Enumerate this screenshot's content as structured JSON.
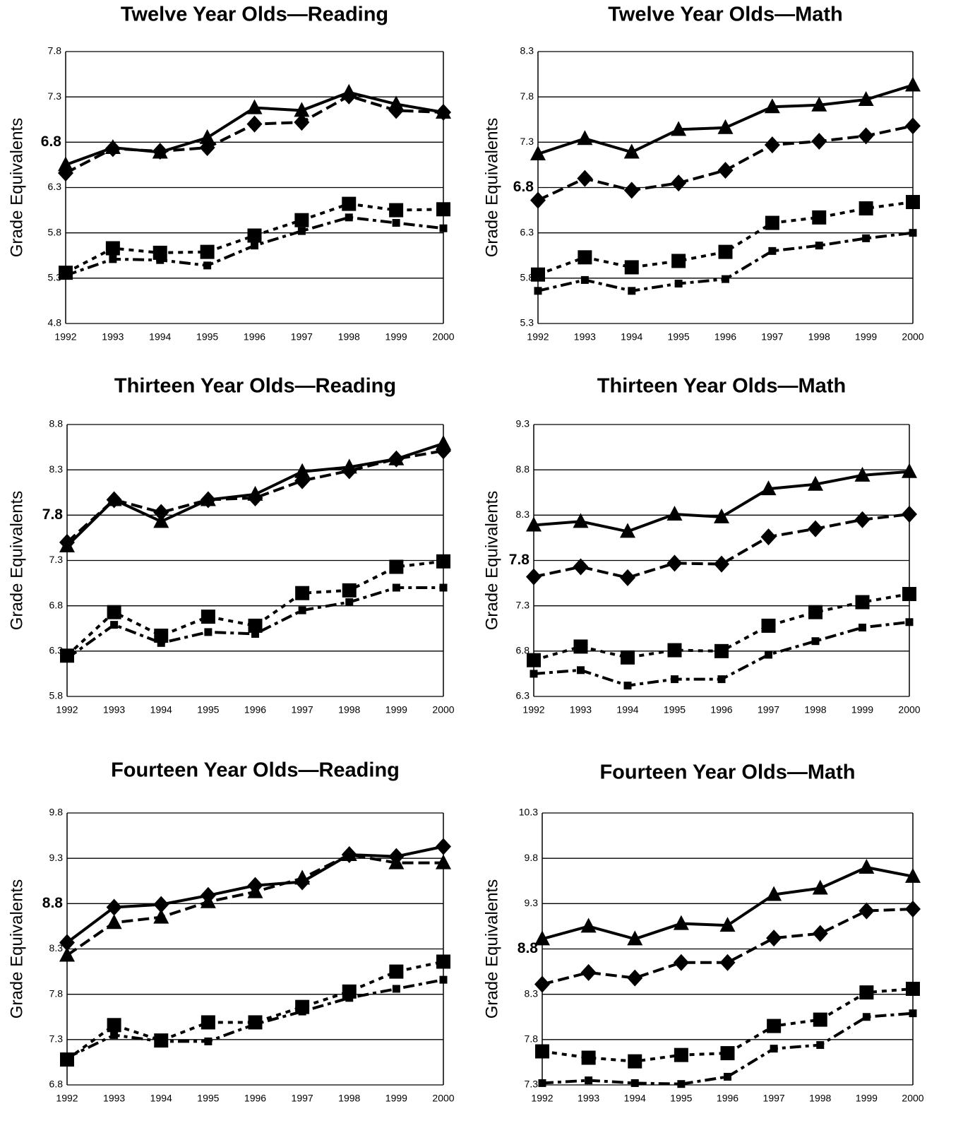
{
  "chart_data": [
    {
      "type": "line",
      "title": "Twelve Year Olds—Reading",
      "ylabel": "Grade Equivalents",
      "categories": [
        "1992",
        "1993",
        "1994",
        "1995",
        "1996",
        "1997",
        "1998",
        "1999",
        "2000"
      ],
      "ylim": [
        4.8,
        7.8
      ],
      "yticks": [
        4.8,
        5.3,
        5.8,
        6.3,
        6.8,
        7.3,
        7.8
      ],
      "emphasized_ytick": 6.8,
      "grid": true,
      "series": [
        {
          "marker": "triangle",
          "dash": "solid",
          "color": "#000000",
          "values": [
            6.55,
            6.74,
            6.69,
            6.85,
            7.18,
            7.15,
            7.35,
            7.22,
            7.13
          ]
        },
        {
          "marker": "diamond",
          "dash": "dashed",
          "color": "#000000",
          "values": [
            6.46,
            6.73,
            6.7,
            6.74,
            7.0,
            7.02,
            7.31,
            7.15,
            7.13
          ]
        },
        {
          "marker": "square",
          "dash": "dotted",
          "color": "#000000",
          "values": [
            5.36,
            5.63,
            5.58,
            5.59,
            5.77,
            5.94,
            6.12,
            6.05,
            6.06
          ]
        },
        {
          "marker": "small-square",
          "dash": "dashdot",
          "color": "#000000",
          "values": [
            5.33,
            5.51,
            5.5,
            5.44,
            5.66,
            5.82,
            5.97,
            5.91,
            5.85
          ]
        }
      ]
    },
    {
      "type": "line",
      "title": "Twelve Year Olds—Math",
      "ylabel": "Grade Equivalents",
      "categories": [
        "1992",
        "1993",
        "1994",
        "1995",
        "1996",
        "1997",
        "1998",
        "1999",
        "2000"
      ],
      "ylim": [
        5.3,
        8.3
      ],
      "yticks": [
        5.3,
        5.8,
        6.3,
        6.8,
        7.3,
        7.8,
        8.3
      ],
      "emphasized_ytick": 6.8,
      "grid": true,
      "series": [
        {
          "marker": "triangle",
          "dash": "solid",
          "color": "#000000",
          "values": [
            7.17,
            7.34,
            7.19,
            7.44,
            7.46,
            7.69,
            7.71,
            7.77,
            7.93
          ]
        },
        {
          "marker": "diamond",
          "dash": "dashed",
          "color": "#000000",
          "values": [
            6.66,
            6.9,
            6.77,
            6.85,
            6.99,
            7.27,
            7.31,
            7.37,
            7.48
          ]
        },
        {
          "marker": "square",
          "dash": "dotted",
          "color": "#000000",
          "values": [
            5.84,
            6.03,
            5.92,
            5.99,
            6.09,
            6.41,
            6.47,
            6.57,
            6.64
          ]
        },
        {
          "marker": "small-square",
          "dash": "dashdot",
          "color": "#000000",
          "values": [
            5.66,
            5.78,
            5.66,
            5.74,
            5.79,
            6.1,
            6.16,
            6.24,
            6.3
          ]
        }
      ]
    },
    {
      "type": "line",
      "title": "Thirteen Year Olds—Reading",
      "ylabel": "Grade Equivalents",
      "categories": [
        "1992",
        "1993",
        "1994",
        "1995",
        "1996",
        "1997",
        "1998",
        "1999",
        "2000"
      ],
      "ylim": [
        5.8,
        8.8
      ],
      "yticks": [
        5.8,
        6.3,
        6.8,
        7.3,
        7.8,
        8.3,
        8.8
      ],
      "emphasized_ytick": 7.8,
      "grid": true,
      "series": [
        {
          "marker": "triangle",
          "dash": "solid",
          "color": "#000000",
          "values": [
            7.46,
            7.97,
            7.73,
            7.97,
            8.03,
            8.28,
            8.33,
            8.42,
            8.59
          ]
        },
        {
          "marker": "diamond",
          "dash": "dashed",
          "color": "#000000",
          "values": [
            7.5,
            7.97,
            7.83,
            7.97,
            7.99,
            8.18,
            8.29,
            8.42,
            8.51
          ]
        },
        {
          "marker": "square",
          "dash": "dotted",
          "color": "#000000",
          "values": [
            6.25,
            6.73,
            6.47,
            6.68,
            6.58,
            6.94,
            6.97,
            7.23,
            7.29
          ]
        },
        {
          "marker": "small-square",
          "dash": "dashdot",
          "color": "#000000",
          "values": [
            6.22,
            6.59,
            6.39,
            6.51,
            6.49,
            6.75,
            6.84,
            7.0,
            7.0
          ]
        }
      ]
    },
    {
      "type": "line",
      "title": "Thirteen Year Olds—Math",
      "ylabel": "Grade Equivalents",
      "categories": [
        "1992",
        "1993",
        "1994",
        "1995",
        "1996",
        "1997",
        "1998",
        "1999",
        "2000"
      ],
      "ylim": [
        6.3,
        9.3
      ],
      "yticks": [
        6.3,
        6.8,
        7.3,
        7.8,
        8.3,
        8.8,
        9.3
      ],
      "emphasized_ytick": 7.8,
      "grid": true,
      "series": [
        {
          "marker": "triangle",
          "dash": "solid",
          "color": "#000000",
          "values": [
            8.19,
            8.23,
            8.12,
            8.31,
            8.28,
            8.59,
            8.64,
            8.74,
            8.78
          ]
        },
        {
          "marker": "diamond",
          "dash": "dashed",
          "color": "#000000",
          "values": [
            7.62,
            7.73,
            7.61,
            7.77,
            7.76,
            8.06,
            8.15,
            8.25,
            8.31
          ]
        },
        {
          "marker": "square",
          "dash": "dotted",
          "color": "#000000",
          "values": [
            6.7,
            6.85,
            6.73,
            6.81,
            6.8,
            7.08,
            7.23,
            7.34,
            7.43
          ]
        },
        {
          "marker": "small-square",
          "dash": "dashdot",
          "color": "#000000",
          "values": [
            6.55,
            6.59,
            6.42,
            6.49,
            6.49,
            6.76,
            6.91,
            7.06,
            7.12
          ]
        }
      ]
    },
    {
      "type": "line",
      "title": "Fourteen Year Olds—Reading",
      "ylabel": "Grade Equivalents",
      "categories": [
        "1992",
        "1993",
        "1994",
        "1995",
        "1996",
        "1997",
        "1998",
        "1999",
        "2000"
      ],
      "ylim": [
        6.8,
        9.8
      ],
      "yticks": [
        6.8,
        7.3,
        7.8,
        8.3,
        8.8,
        9.3,
        9.8
      ],
      "emphasized_ytick": 8.8,
      "grid": true,
      "series": [
        {
          "marker": "triangle",
          "dash": "dashed",
          "color": "#000000",
          "values": [
            8.23,
            8.59,
            8.65,
            8.82,
            8.93,
            9.08,
            9.34,
            9.25,
            9.25
          ]
        },
        {
          "marker": "diamond",
          "dash": "solid",
          "color": "#000000",
          "values": [
            8.37,
            8.76,
            8.79,
            8.89,
            9.0,
            9.04,
            9.34,
            9.32,
            9.43
          ]
        },
        {
          "marker": "square",
          "dash": "dotted",
          "color": "#000000",
          "values": [
            7.08,
            7.46,
            7.29,
            7.49,
            7.49,
            7.66,
            7.83,
            8.05,
            8.16
          ]
        },
        {
          "marker": "small-square",
          "dash": "dashdot",
          "color": "#000000",
          "values": [
            7.1,
            7.35,
            7.28,
            7.28,
            7.47,
            7.61,
            7.76,
            7.86,
            7.96
          ]
        }
      ]
    },
    {
      "type": "line",
      "title": "Fourteen Year Olds—Math",
      "ylabel": "Grade Equivalents",
      "categories": [
        "1992",
        "1993",
        "1994",
        "1995",
        "1996",
        "1997",
        "1998",
        "1999",
        "2000"
      ],
      "ylim": [
        7.3,
        10.3
      ],
      "yticks": [
        7.3,
        7.8,
        8.3,
        8.8,
        9.3,
        9.8,
        10.3
      ],
      "emphasized_ytick": 8.8,
      "grid": true,
      "series": [
        {
          "marker": "triangle",
          "dash": "solid",
          "color": "#000000",
          "values": [
            8.91,
            9.05,
            8.91,
            9.08,
            9.06,
            9.4,
            9.47,
            9.7,
            9.6
          ]
        },
        {
          "marker": "diamond",
          "dash": "dashed",
          "color": "#000000",
          "values": [
            8.41,
            8.54,
            8.48,
            8.65,
            8.65,
            8.92,
            8.97,
            9.22,
            9.24
          ]
        },
        {
          "marker": "square",
          "dash": "dotted",
          "color": "#000000",
          "values": [
            7.67,
            7.6,
            7.56,
            7.63,
            7.65,
            7.95,
            8.02,
            8.32,
            8.36
          ]
        },
        {
          "marker": "small-square",
          "dash": "dashdot",
          "color": "#000000",
          "values": [
            7.32,
            7.35,
            7.32,
            7.31,
            7.39,
            7.7,
            7.74,
            8.05,
            8.09
          ]
        }
      ]
    }
  ]
}
